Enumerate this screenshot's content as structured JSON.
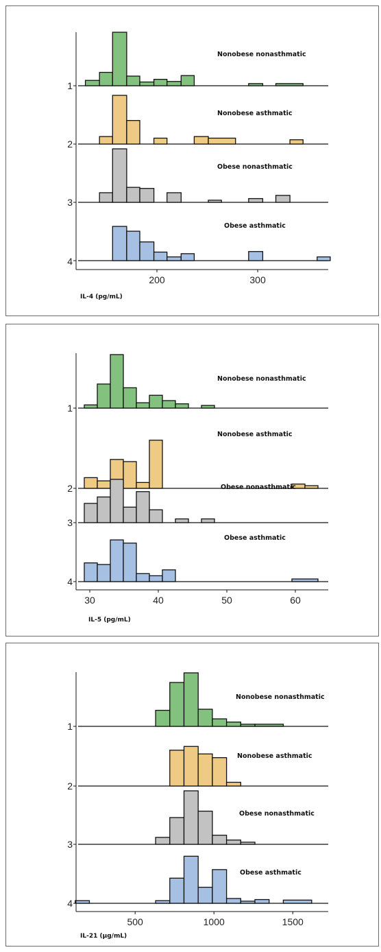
{
  "chart_data": [
    {
      "type": "histogram",
      "xlabel": "IL-4 (pg/mL)",
      "xticks": [
        200,
        300
      ],
      "xlim": [
        115,
        370
      ],
      "bin_width": 13.5,
      "yticks": [
        "1",
        "2",
        "3",
        "4"
      ],
      "series": [
        {
          "name": "Nonobese nonasthmatic",
          "group": "1",
          "color": "#82c17e",
          "bins": [
            [
              129,
              143,
              0.1
            ],
            [
              143,
              156,
              0.25
            ],
            [
              156,
              170,
              1.0
            ],
            [
              170,
              183,
              0.18
            ],
            [
              183,
              197,
              0.07
            ],
            [
              197,
              210,
              0.12
            ],
            [
              210,
              224,
              0.08
            ],
            [
              224,
              237,
              0.19
            ],
            [
              291,
              305,
              0.04
            ],
            [
              318,
              345,
              0.04
            ]
          ]
        },
        {
          "name": "Nonobese asthmatic",
          "group": "2",
          "color": "#efca85",
          "bins": [
            [
              143,
              156,
              0.14
            ],
            [
              156,
              170,
              0.91
            ],
            [
              170,
              183,
              0.44
            ],
            [
              197,
              210,
              0.11
            ],
            [
              237,
              251,
              0.14
            ],
            [
              251,
              278,
              0.11
            ],
            [
              332,
              345,
              0.08
            ]
          ]
        },
        {
          "name": "Obese nonasthmatic",
          "group": "3",
          "color": "#c2c2c2",
          "bins": [
            [
              143,
              156,
              0.18
            ],
            [
              156,
              170,
              1.0
            ],
            [
              170,
              183,
              0.28
            ],
            [
              183,
              197,
              0.26
            ],
            [
              210,
              224,
              0.18
            ],
            [
              251,
              264,
              0.04
            ],
            [
              291,
              305,
              0.07
            ],
            [
              318,
              332,
              0.13
            ]
          ]
        },
        {
          "name": "Obese asthmatic",
          "group": "4",
          "color": "#a6c0e4",
          "bins": [
            [
              156,
              170,
              0.64
            ],
            [
              170,
              183,
              0.55
            ],
            [
              183,
              197,
              0.35
            ],
            [
              197,
              210,
              0.16
            ],
            [
              210,
              224,
              0.07
            ],
            [
              224,
              237,
              0.13
            ],
            [
              291,
              305,
              0.17
            ],
            [
              359,
              372,
              0.07
            ]
          ]
        }
      ]
    },
    {
      "type": "histogram",
      "xlabel": "IL-5 (pg/mL)",
      "xticks": [
        30,
        40,
        50,
        60
      ],
      "xlim": [
        27.3,
        64.8
      ],
      "bin_width": 1.9,
      "yticks": [
        "1",
        "2",
        "3",
        "4"
      ],
      "series": [
        {
          "name": "Nonobese nonasthmatic",
          "group": "1",
          "color": "#82c17e",
          "bins": [
            [
              29.2,
              31.1,
              0.06
            ],
            [
              31.1,
              33.0,
              0.45
            ],
            [
              33.0,
              34.9,
              1.0
            ],
            [
              34.9,
              36.8,
              0.38
            ],
            [
              36.8,
              38.7,
              0.1
            ],
            [
              38.7,
              40.6,
              0.24
            ],
            [
              40.6,
              42.5,
              0.14
            ],
            [
              42.5,
              44.4,
              0.08
            ],
            [
              46.3,
              48.2,
              0.05
            ]
          ]
        },
        {
          "name": "Nonobese asthmatic",
          "group": "2",
          "color": "#efca85",
          "bins": [
            [
              29.2,
              31.1,
              0.2
            ],
            [
              31.1,
              33.0,
              0.14
            ],
            [
              33.0,
              34.9,
              0.54
            ],
            [
              34.9,
              36.8,
              0.5
            ],
            [
              36.8,
              38.7,
              0.11
            ],
            [
              38.7,
              40.6,
              0.9
            ],
            [
              59.5,
              61.4,
              0.08
            ],
            [
              61.4,
              63.3,
              0.05
            ]
          ]
        },
        {
          "name": "Obese nonasthmatic",
          "group": "3",
          "color": "#c2c2c2",
          "bins": [
            [
              29.2,
              31.1,
              0.36
            ],
            [
              31.1,
              33.0,
              0.48
            ],
            [
              33.0,
              34.9,
              0.81
            ],
            [
              34.9,
              36.8,
              0.29
            ],
            [
              36.8,
              38.7,
              0.58
            ],
            [
              38.7,
              40.6,
              0.24
            ],
            [
              42.5,
              44.4,
              0.07
            ],
            [
              46.3,
              48.2,
              0.07
            ]
          ]
        },
        {
          "name": "Obese asthmatic",
          "group": "4",
          "color": "#a6c0e4",
          "bins": [
            [
              29.2,
              31.1,
              0.35
            ],
            [
              31.1,
              33.0,
              0.32
            ],
            [
              33.0,
              34.9,
              0.78
            ],
            [
              34.9,
              36.8,
              0.72
            ],
            [
              36.8,
              38.7,
              0.15
            ],
            [
              38.7,
              40.6,
              0.11
            ],
            [
              40.6,
              42.5,
              0.22
            ],
            [
              59.5,
              63.3,
              0.05
            ]
          ]
        }
      ]
    },
    {
      "type": "histogram",
      "xlabel": "IL-21 (µg/mL)",
      "xticks": [
        500,
        1000,
        1500
      ],
      "xlim": [
        95,
        1725
      ],
      "bin_width": 90,
      "yticks": [
        "1",
        "2",
        "3",
        "4"
      ],
      "series": [
        {
          "name": "Nonobese nonasthmatic",
          "group": "1",
          "color": "#82c17e",
          "bins": [
            [
              630,
              720,
              0.3
            ],
            [
              720,
              810,
              0.82
            ],
            [
              810,
              900,
              1.0
            ],
            [
              900,
              990,
              0.32
            ],
            [
              990,
              1080,
              0.14
            ],
            [
              1080,
              1170,
              0.08
            ],
            [
              1170,
              1260,
              0.04
            ],
            [
              1260,
              1440,
              0.04
            ]
          ]
        },
        {
          "name": "Nonobese asthmatic",
          "group": "2",
          "color": "#efca85",
          "bins": [
            [
              720,
              810,
              0.67
            ],
            [
              810,
              900,
              0.74
            ],
            [
              900,
              990,
              0.6
            ],
            [
              990,
              1080,
              0.53
            ],
            [
              1080,
              1170,
              0.07
            ]
          ]
        },
        {
          "name": "Obese nonasthmatic",
          "group": "3",
          "color": "#c2c2c2",
          "bins": [
            [
              630,
              720,
              0.13
            ],
            [
              720,
              810,
              0.5
            ],
            [
              810,
              900,
              1.0
            ],
            [
              900,
              990,
              0.62
            ],
            [
              990,
              1080,
              0.17
            ],
            [
              1080,
              1170,
              0.08
            ],
            [
              1170,
              1260,
              0.04
            ]
          ]
        },
        {
          "name": "Obese asthmatic",
          "group": "4",
          "color": "#a6c0e4",
          "bins": [
            [
              120,
              210,
              0.05
            ],
            [
              630,
              720,
              0.05
            ],
            [
              720,
              810,
              0.47
            ],
            [
              810,
              900,
              0.88
            ],
            [
              900,
              990,
              0.3
            ],
            [
              990,
              1080,
              0.63
            ],
            [
              1080,
              1170,
              0.09
            ],
            [
              1170,
              1260,
              0.04
            ],
            [
              1260,
              1350,
              0.07
            ],
            [
              1440,
              1620,
              0.06
            ]
          ]
        }
      ]
    }
  ]
}
